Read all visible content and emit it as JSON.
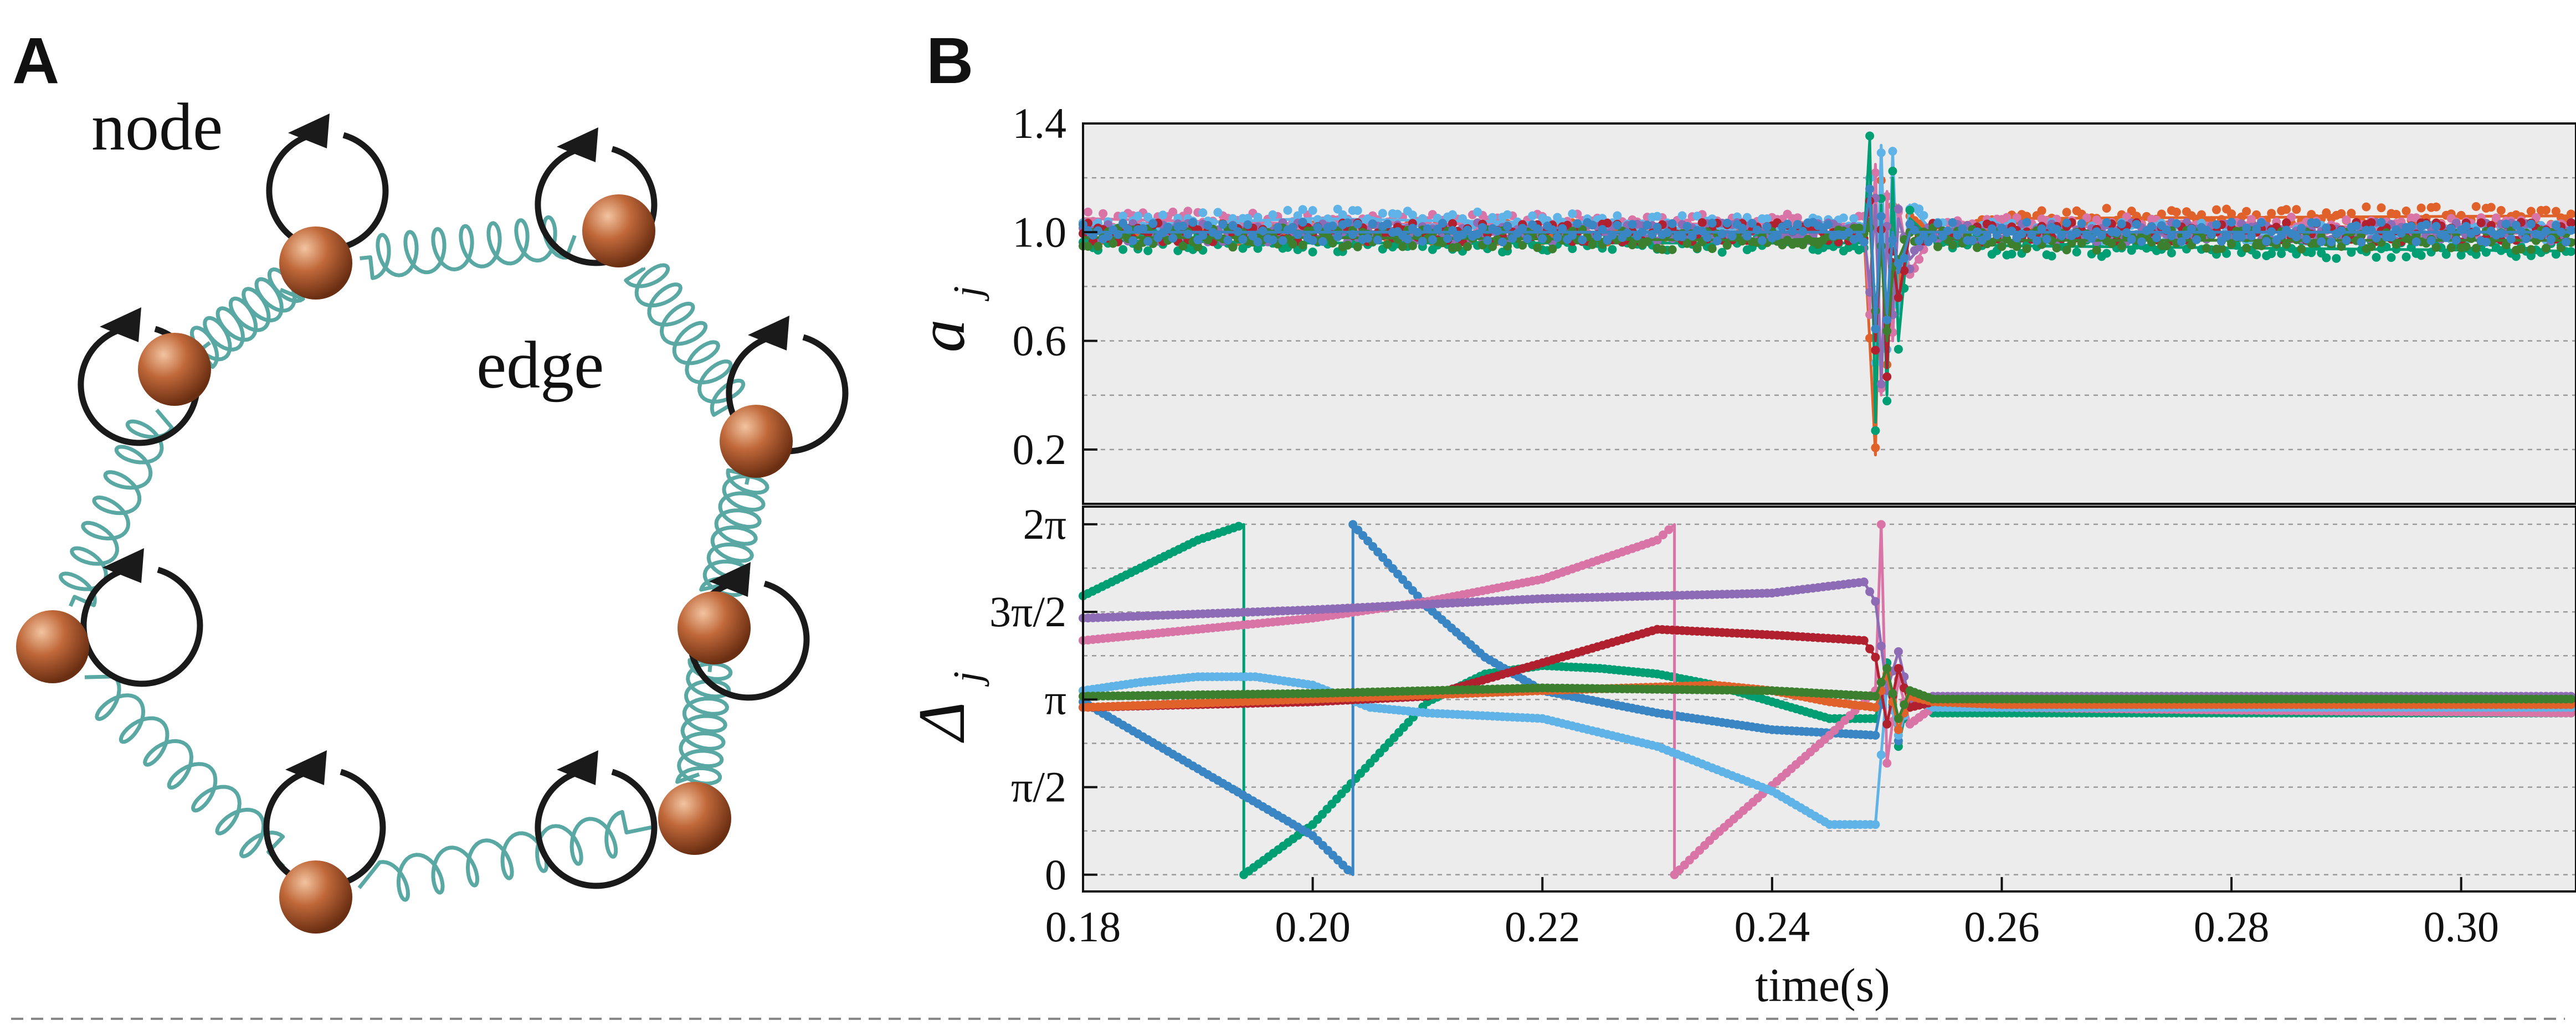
{
  "panel_a": {
    "letter": "A",
    "labels": {
      "node": "node",
      "edge": "edge"
    }
  },
  "panel_b": {
    "letter": "B"
  },
  "colors": {
    "spring": "#5aa8a4",
    "node_ball": "#c0683a",
    "arrow": "#1a1a1a",
    "plot_bg": "#ececec",
    "grid": "#9a9a9a"
  },
  "chart_data": [
    {
      "type": "line",
      "ylabel": "a",
      "ylabel_sub": "j",
      "xlim": [
        0.18,
        0.31
      ],
      "ylim": [
        0.0,
        1.4
      ],
      "yticks": [
        0.2,
        0.6,
        1.0,
        1.4
      ],
      "ytick_labels": [
        "0.2",
        "0.6",
        "1.0",
        "1.4"
      ],
      "grid": true,
      "series": [
        {
          "color": "#e0622a",
          "x": [
            0.18,
            0.2,
            0.24,
            0.248,
            0.2485,
            0.249,
            0.2495,
            0.25,
            0.2505,
            0.251,
            0.252,
            0.254,
            0.26,
            0.31
          ],
          "y": [
            1.0,
            1.0,
            1.0,
            1.0,
            0.6,
            0.18,
            1.2,
            0.5,
            1.1,
            0.8,
            1.05,
            1.0,
            1.05,
            1.06
          ]
        },
        {
          "color": "#d975a6",
          "x": [
            0.18,
            0.2,
            0.24,
            0.248,
            0.2485,
            0.249,
            0.2495,
            0.25,
            0.2505,
            0.251,
            0.252,
            0.254,
            0.26,
            0.31
          ],
          "y": [
            1.05,
            1.03,
            1.03,
            1.03,
            0.7,
            1.25,
            0.4,
            1.15,
            0.6,
            1.1,
            0.85,
            1.0,
            1.02,
            1.02
          ]
        },
        {
          "color": "#5fb3e6",
          "x": [
            0.18,
            0.2,
            0.24,
            0.248,
            0.2485,
            0.249,
            0.2495,
            0.25,
            0.2505,
            0.251,
            0.252,
            0.254,
            0.26,
            0.31
          ],
          "y": [
            1.02,
            1.05,
            1.02,
            1.02,
            1.2,
            0.5,
            1.32,
            0.55,
            1.3,
            0.7,
            1.1,
            1.0,
            1.0,
            1.0
          ]
        },
        {
          "color": "#009e73",
          "x": [
            0.18,
            0.2,
            0.24,
            0.248,
            0.2485,
            0.249,
            0.2495,
            0.25,
            0.2505,
            0.251,
            0.252,
            0.254,
            0.26,
            0.31
          ],
          "y": [
            0.97,
            0.96,
            0.96,
            0.96,
            1.34,
            0.3,
            1.1,
            0.4,
            1.2,
            0.6,
            1.05,
            0.97,
            0.95,
            0.93
          ]
        },
        {
          "color": "#8e6bb5",
          "x": [
            0.18,
            0.2,
            0.24,
            0.248,
            0.2485,
            0.249,
            0.2495,
            0.25,
            0.2505,
            0.251,
            0.252,
            0.254,
            0.26,
            0.31
          ],
          "y": [
            1.0,
            1.0,
            1.0,
            1.0,
            0.8,
            1.1,
            0.45,
            1.0,
            0.7,
            1.05,
            0.9,
            1.0,
            1.0,
            1.0
          ]
        },
        {
          "color": "#b0202e",
          "x": [
            0.18,
            0.2,
            0.24,
            0.248,
            0.2485,
            0.249,
            0.2495,
            0.25,
            0.2505,
            0.251,
            0.252,
            0.254,
            0.26,
            0.31
          ],
          "y": [
            1.0,
            1.0,
            1.0,
            1.0,
            1.1,
            0.6,
            1.0,
            0.5,
            0.9,
            0.75,
            1.0,
            1.0,
            1.0,
            1.0
          ]
        },
        {
          "color": "#3b7f2f",
          "x": [
            0.18,
            0.2,
            0.24,
            0.248,
            0.2485,
            0.249,
            0.2495,
            0.25,
            0.2505,
            0.251,
            0.252,
            0.254,
            0.26,
            0.31
          ],
          "y": [
            0.98,
            0.98,
            0.97,
            0.98,
            1.05,
            0.7,
            0.95,
            0.6,
            0.85,
            0.9,
            1.0,
            0.98,
            0.97,
            0.97
          ]
        },
        {
          "color": "#3a86c4",
          "x": [
            0.18,
            0.2,
            0.24,
            0.248,
            0.2485,
            0.249,
            0.2495,
            0.25,
            0.2505,
            0.251,
            0.252,
            0.254,
            0.26,
            0.31
          ],
          "y": [
            1.0,
            1.0,
            1.0,
            1.0,
            1.15,
            0.65,
            1.05,
            0.7,
            1.0,
            0.85,
            1.0,
            1.0,
            1.0,
            1.0
          ]
        }
      ]
    },
    {
      "type": "line",
      "ylabel": "Δ",
      "ylabel_sub": "j",
      "xlim": [
        0.18,
        0.31
      ],
      "ylim": [
        -0.3,
        6.6
      ],
      "yticks": [
        0,
        1.5708,
        3.1416,
        4.7124,
        6.2832
      ],
      "ytick_labels": [
        "0",
        "π/2",
        "π",
        "3π/2",
        "2π"
      ],
      "grid": true,
      "xticks": [
        0.18,
        0.2,
        0.22,
        0.24,
        0.26,
        0.28,
        0.3
      ],
      "xtick_labels": [
        "0.18",
        "0.20",
        "0.22",
        "0.24",
        "0.26",
        "0.28",
        "0.30"
      ],
      "xlabel": "time(s)",
      "series": [
        {
          "color": "#009e73",
          "x": [
            0.18,
            0.185,
            0.19,
            0.194,
            0.194,
            0.2,
            0.205,
            0.21,
            0.215,
            0.22,
            0.225,
            0.23,
            0.235,
            0.24,
            0.245,
            0.249,
            0.25,
            0.251,
            0.252,
            0.254,
            0.26,
            0.28,
            0.31
          ],
          "y": [
            5.0,
            5.5,
            6.0,
            6.28,
            0.0,
            0.9,
            2.0,
            3.1,
            3.6,
            3.75,
            3.7,
            3.6,
            3.4,
            3.1,
            2.8,
            2.8,
            3.8,
            2.3,
            3.3,
            2.9,
            2.9,
            2.9,
            2.9
          ]
        },
        {
          "color": "#3a86c4",
          "x": [
            0.18,
            0.19,
            0.2,
            0.2035,
            0.2035,
            0.21,
            0.215,
            0.22,
            0.23,
            0.24,
            0.249,
            0.25,
            0.251,
            0.252,
            0.254,
            0.26,
            0.28,
            0.31
          ],
          "y": [
            3.1,
            1.9,
            0.7,
            0.0,
            6.28,
            4.8,
            3.9,
            3.3,
            2.9,
            2.6,
            2.5,
            3.6,
            2.4,
            3.3,
            3.0,
            3.0,
            3.0,
            3.0
          ]
        },
        {
          "color": "#d975a6",
          "x": [
            0.18,
            0.19,
            0.2,
            0.21,
            0.22,
            0.23,
            0.2315,
            0.2315,
            0.235,
            0.24,
            0.245,
            0.249,
            0.2495,
            0.25,
            0.251,
            0.252,
            0.254,
            0.26,
            0.28,
            0.31
          ],
          "y": [
            4.2,
            4.4,
            4.6,
            4.9,
            5.3,
            6.0,
            6.28,
            0.0,
            0.7,
            1.6,
            2.5,
            3.3,
            6.28,
            2.0,
            3.5,
            2.7,
            3.0,
            3.0,
            2.95,
            2.9
          ]
        },
        {
          "color": "#5fb3e6",
          "x": [
            0.18,
            0.185,
            0.19,
            0.195,
            0.2,
            0.205,
            0.21,
            0.22,
            0.23,
            0.24,
            0.245,
            0.249,
            0.25,
            0.251,
            0.252,
            0.254,
            0.26,
            0.31
          ],
          "y": [
            3.3,
            3.45,
            3.55,
            3.55,
            3.4,
            3.0,
            2.9,
            2.8,
            2.3,
            1.5,
            0.9,
            0.9,
            3.4,
            2.5,
            3.2,
            3.0,
            3.0,
            3.0
          ]
        },
        {
          "color": "#8e6bb5",
          "x": [
            0.18,
            0.2,
            0.22,
            0.24,
            0.248,
            0.249,
            0.25,
            0.251,
            0.252,
            0.254,
            0.26,
            0.28,
            0.31
          ],
          "y": [
            4.6,
            4.75,
            4.95,
            5.05,
            5.25,
            4.9,
            3.3,
            4.0,
            3.1,
            3.2,
            3.2,
            3.2,
            3.2
          ]
        },
        {
          "color": "#b0202e",
          "x": [
            0.18,
            0.2,
            0.21,
            0.22,
            0.23,
            0.24,
            0.248,
            0.249,
            0.25,
            0.251,
            0.252,
            0.254,
            0.26,
            0.31
          ],
          "y": [
            3.0,
            3.1,
            3.2,
            3.8,
            4.4,
            4.3,
            4.2,
            3.9,
            2.7,
            3.7,
            3.0,
            3.1,
            3.1,
            3.1
          ]
        },
        {
          "color": "#e0622a",
          "x": [
            0.18,
            0.2,
            0.22,
            0.235,
            0.24,
            0.245,
            0.249,
            0.25,
            0.251,
            0.252,
            0.254,
            0.26,
            0.31
          ],
          "y": [
            3.0,
            3.15,
            3.3,
            3.4,
            3.3,
            3.1,
            3.0,
            3.6,
            2.6,
            3.2,
            3.1,
            3.05,
            3.05
          ]
        },
        {
          "color": "#3b7f2f",
          "x": [
            0.18,
            0.2,
            0.22,
            0.24,
            0.249,
            0.25,
            0.251,
            0.252,
            0.254,
            0.26,
            0.31
          ],
          "y": [
            3.2,
            3.25,
            3.35,
            3.3,
            3.2,
            3.7,
            2.8,
            3.3,
            3.15,
            3.15,
            3.15
          ]
        }
      ]
    }
  ]
}
